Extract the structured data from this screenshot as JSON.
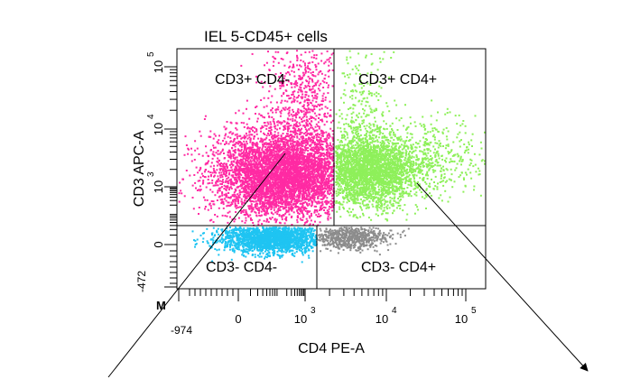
{
  "chart_data": {
    "type": "scatter",
    "title": "IEL 5-CD45+ cells",
    "xlabel": "CD4 PE-A",
    "ylabel": "CD3 APC-A",
    "x_scale": "biexponential",
    "y_scale": "biexponential",
    "x_ticks": [
      {
        "value": -974,
        "label": "-974"
      },
      {
        "value": 0,
        "label": "0"
      },
      {
        "value": 1000,
        "label": "10",
        "exp": "3"
      },
      {
        "value": 10000,
        "label": "10",
        "exp": "4"
      },
      {
        "value": 100000,
        "label": "10",
        "exp": "5"
      }
    ],
    "y_ticks": [
      {
        "value": -472,
        "label": "-472"
      },
      {
        "value": 0,
        "label": "0"
      },
      {
        "value": 1000,
        "label": "10",
        "exp": "3"
      },
      {
        "value": 10000,
        "label": "10",
        "exp": "4"
      },
      {
        "value": 100000,
        "label": "10",
        "exp": "5"
      }
    ],
    "quadrants": [
      {
        "label": "CD3+ CD4-",
        "color": "#ff2aa3"
      },
      {
        "label": "CD3+ CD4+",
        "color": "#8ef05a"
      },
      {
        "label": "CD3- CD4-",
        "color": "#1fc4f2"
      },
      {
        "label": "CD3- CD4+",
        "color": "#8c8c8c"
      }
    ],
    "gate_marker": "M",
    "gate_marker_color": "#2255ff",
    "grid": false,
    "legend": "none"
  }
}
